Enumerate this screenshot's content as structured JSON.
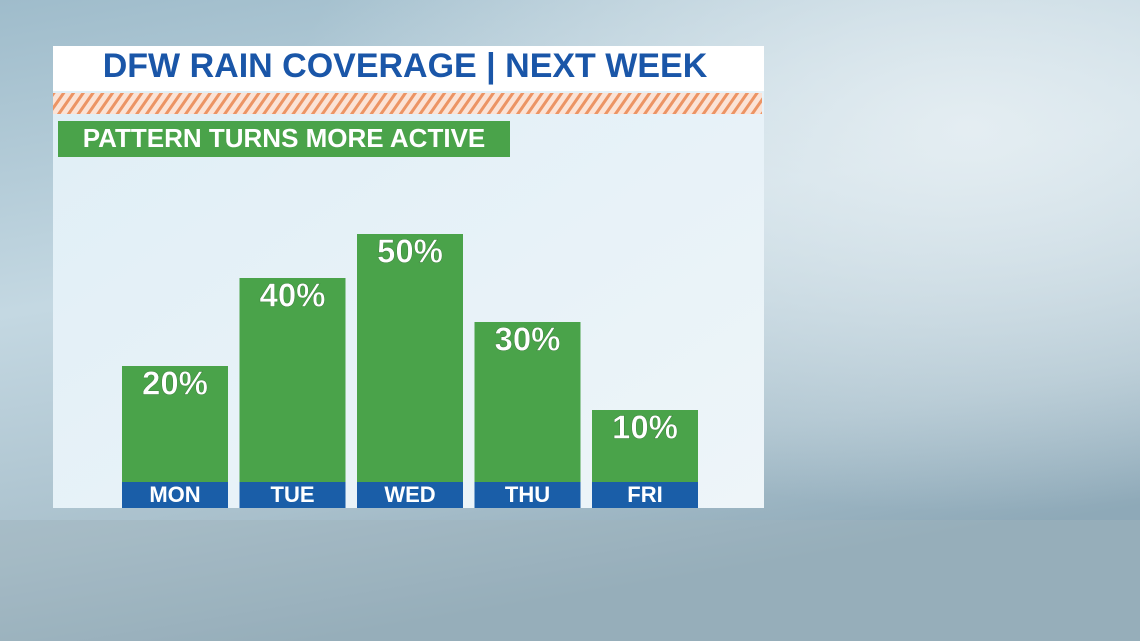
{
  "chart_data": {
    "type": "bar",
    "title": "DFW RAIN COVERAGE | NEXT WEEK",
    "subtitle": "PATTERN TURNS MORE ACTIVE",
    "categories": [
      "MON",
      "TUE",
      "WED",
      "THU",
      "FRI"
    ],
    "values": [
      20,
      40,
      50,
      30,
      10
    ],
    "value_labels": [
      "20%",
      "40%",
      "50%",
      "30%",
      "10%"
    ],
    "color": "#4aa34a"
  }
}
